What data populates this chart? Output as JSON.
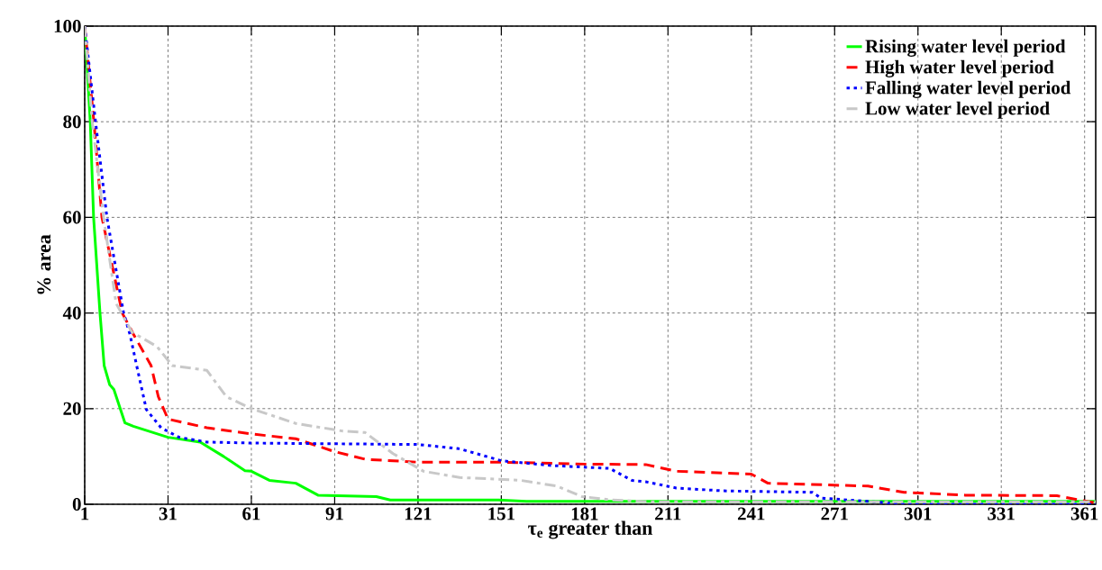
{
  "chart_data": {
    "type": "line",
    "xlabel": "τ$_{e}$ greater than",
    "ylabel": "% area",
    "xlim": [
      1,
      365
    ],
    "ylim": [
      0,
      100
    ],
    "xticks": [
      1,
      31,
      61,
      91,
      121,
      151,
      181,
      211,
      241,
      271,
      301,
      331,
      361
    ],
    "yticks": [
      0,
      20,
      40,
      60,
      80,
      100
    ],
    "grid": true,
    "legend": "top right",
    "series": [
      {
        "name": "Rising water level period",
        "color": "#00ff00",
        "line_style": "solid",
        "x": [
          1,
          3,
          4.2,
          6.5,
          8,
          10,
          11.5,
          15.5,
          18.5,
          31,
          42.6,
          51,
          58.7,
          61,
          67.5,
          77,
          85,
          106,
          111,
          150,
          160,
          365
        ],
        "values": [
          100,
          80,
          60,
          40,
          29,
          25,
          24,
          17,
          16.3,
          14,
          13,
          10,
          7,
          6.9,
          5,
          4.4,
          1.9,
          1.6,
          0.9,
          0.9,
          0.6,
          0.6
        ]
      },
      {
        "name": "High water level period",
        "color": "#ff0000",
        "line_style": "dashed",
        "x": [
          1,
          4.3,
          7.2,
          14.5,
          18.6,
          24.9,
          27.5,
          31,
          45,
          61,
          77,
          91,
          102,
          121,
          151,
          181,
          203,
          214,
          241,
          247,
          283,
          296,
          318,
          351,
          360,
          365
        ],
        "values": [
          100,
          80,
          60,
          40,
          35.5,
          29,
          22.5,
          17.8,
          16,
          14.7,
          13.7,
          11,
          9.4,
          8.8,
          8.8,
          8.4,
          8.3,
          6.9,
          6.3,
          4.4,
          3.8,
          2.5,
          1.9,
          1.8,
          0.8,
          0.3
        ]
      },
      {
        "name": "Falling water level period",
        "color": "#0000ff",
        "line_style": "dotted",
        "x": [
          1,
          4.9,
          9,
          15,
          17.3,
          19.7,
          23.2,
          28.5,
          35,
          45,
          61,
          121,
          136,
          151,
          169,
          190,
          198,
          203,
          214,
          231,
          263,
          266,
          283,
          296,
          365
        ],
        "values": [
          100,
          80,
          60,
          40,
          35.5,
          29,
          19.8,
          16,
          14,
          13,
          12.8,
          12.5,
          11.6,
          9.1,
          8.1,
          7.5,
          5,
          4.7,
          3.4,
          2.8,
          2.5,
          1.3,
          0.6,
          0,
          0
        ]
      },
      {
        "name": "Low water level period",
        "color": "#c8c8c8",
        "line_style": "dashdot",
        "x": [
          1,
          3.7,
          7.8,
          12.3,
          18,
          27,
          32.5,
          45,
          52,
          61,
          77,
          94,
          102,
          112,
          123,
          136,
          158,
          171,
          180,
          191,
          205,
          365
        ],
        "values": [
          100,
          80,
          60,
          42,
          36,
          33,
          29,
          28,
          22.5,
          20,
          16.9,
          15.3,
          15,
          10.6,
          6.9,
          5.6,
          5,
          3.8,
          1.6,
          0.9,
          0.5,
          0.5
        ]
      }
    ]
  }
}
